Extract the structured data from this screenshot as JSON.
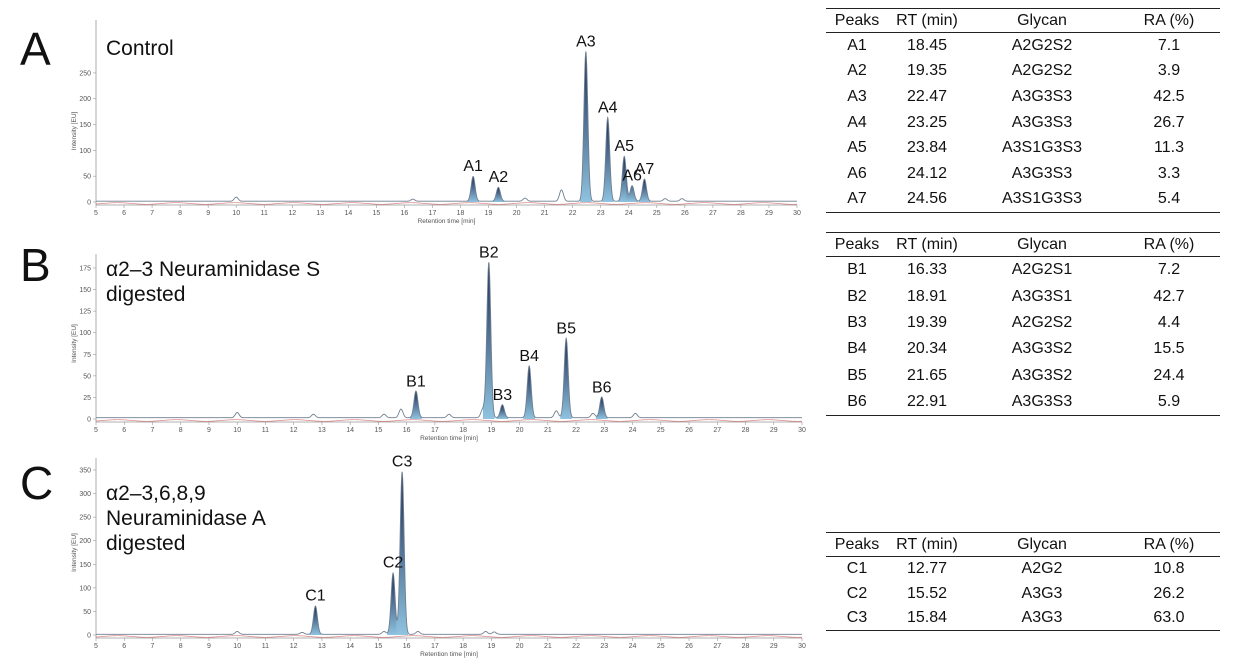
{
  "chart_data": [
    {
      "type": "line",
      "panel": "A",
      "title": "Control",
      "title_lines": [
        "Control"
      ],
      "xlabel": "Retention time [min]",
      "ylabel": "Intensity [EU]",
      "xlim": [
        5,
        30
      ],
      "ylim": [
        0,
        275
      ],
      "xticks": [
        5,
        6,
        7,
        8,
        9,
        10,
        11,
        12,
        13,
        14,
        15,
        16,
        17,
        18,
        19,
        20,
        21,
        22,
        23,
        24,
        25,
        26,
        27,
        28,
        29,
        30
      ],
      "yticks": [
        0,
        50,
        100,
        150,
        200,
        250
      ],
      "peaks": [
        {
          "label": "A1",
          "x": 18.45,
          "y": 48
        },
        {
          "label": "A2",
          "x": 19.35,
          "y": 27
        },
        {
          "label": "A3",
          "x": 22.47,
          "y": 290
        },
        {
          "label": "A4",
          "x": 23.25,
          "y": 162
        },
        {
          "label": "A5",
          "x": 23.84,
          "y": 87
        },
        {
          "label": "A6",
          "x": 24.12,
          "y": 30
        },
        {
          "label": "A7",
          "x": 24.56,
          "y": 43
        }
      ],
      "minor_peaks": [
        {
          "x": 10.0,
          "y": 8
        },
        {
          "x": 16.3,
          "y": 4
        },
        {
          "x": 20.3,
          "y": 6
        },
        {
          "x": 21.6,
          "y": 22
        },
        {
          "x": 25.3,
          "y": 5
        },
        {
          "x": 25.9,
          "y": 5
        }
      ]
    },
    {
      "type": "line",
      "panel": "B",
      "title": "α2–3 Neuraminidase S digested",
      "title_lines": [
        "α2–3 Neuraminidase S",
        "digested"
      ],
      "xlabel": "Retention time [min]",
      "ylabel": "Intensity [EU]",
      "xlim": [
        5,
        30
      ],
      "ylim": [
        0,
        175
      ],
      "xticks": [
        5,
        6,
        7,
        8,
        9,
        10,
        11,
        12,
        13,
        14,
        15,
        16,
        17,
        18,
        19,
        20,
        21,
        22,
        23,
        24,
        25,
        26,
        27,
        28,
        29,
        30
      ],
      "yticks": [
        0,
        25,
        50,
        75,
        100,
        125,
        150,
        175
      ],
      "peaks": [
        {
          "label": "B1",
          "x": 16.33,
          "y": 31
        },
        {
          "label": "B2",
          "x": 18.91,
          "y": 180
        },
        {
          "label": "B3",
          "x": 19.39,
          "y": 15
        },
        {
          "label": "B4",
          "x": 20.34,
          "y": 60
        },
        {
          "label": "B5",
          "x": 21.65,
          "y": 92
        },
        {
          "label": "B6",
          "x": 22.91,
          "y": 24
        }
      ],
      "minor_peaks": [
        {
          "x": 10.0,
          "y": 6
        },
        {
          "x": 12.7,
          "y": 4
        },
        {
          "x": 15.2,
          "y": 4
        },
        {
          "x": 15.8,
          "y": 10
        },
        {
          "x": 17.5,
          "y": 4
        },
        {
          "x": 18.7,
          "y": 10
        },
        {
          "x": 21.3,
          "y": 8
        },
        {
          "x": 22.6,
          "y": 5
        },
        {
          "x": 24.1,
          "y": 5
        }
      ]
    },
    {
      "type": "line",
      "panel": "C",
      "title": "α2–3,6,8,9 Neuraminidase A digested",
      "title_lines": [
        "α2–3,6,8,9",
        "Neuraminidase A",
        "digested"
      ],
      "xlabel": "Retention time [min]",
      "ylabel": "Intensity [EU]",
      "xlim": [
        5,
        30
      ],
      "ylim": [
        0,
        350
      ],
      "xticks": [
        5,
        6,
        7,
        8,
        9,
        10,
        11,
        12,
        13,
        14,
        15,
        16,
        17,
        18,
        19,
        20,
        21,
        22,
        23,
        24,
        25,
        26,
        27,
        28,
        29,
        30
      ],
      "yticks": [
        0,
        50,
        100,
        150,
        200,
        250,
        300,
        350
      ],
      "peaks": [
        {
          "label": "C1",
          "x": 12.77,
          "y": 60
        },
        {
          "label": "C2",
          "x": 15.52,
          "y": 130
        },
        {
          "label": "C3",
          "x": 15.84,
          "y": 345
        }
      ],
      "minor_peaks": [
        {
          "x": 10.0,
          "y": 6
        },
        {
          "x": 12.3,
          "y": 4
        },
        {
          "x": 15.2,
          "y": 6
        },
        {
          "x": 16.4,
          "y": 6
        },
        {
          "x": 18.8,
          "y": 6
        },
        {
          "x": 19.1,
          "y": 5
        }
      ]
    }
  ],
  "tables": [
    {
      "headers": [
        "Peaks",
        "RT (min)",
        "Glycan",
        "RA (%)"
      ],
      "rows": [
        [
          "A1",
          "18.45",
          "A2G2S2",
          "7.1"
        ],
        [
          "A2",
          "19.35",
          "A2G2S2",
          "3.9"
        ],
        [
          "A3",
          "22.47",
          "A3G3S3",
          "42.5"
        ],
        [
          "A4",
          "23.25",
          "A3G3S3",
          "26.7"
        ],
        [
          "A5",
          "23.84",
          "A3S1G3S3",
          "11.3"
        ],
        [
          "A6",
          "24.12",
          "A3G3S3",
          "3.3"
        ],
        [
          "A7",
          "24.56",
          "A3S1G3S3",
          "5.4"
        ]
      ]
    },
    {
      "headers": [
        "Peaks",
        "RT (min)",
        "Glycan",
        "RA (%)"
      ],
      "rows": [
        [
          "B1",
          "16.33",
          "A2G2S1",
          "7.2"
        ],
        [
          "B2",
          "18.91",
          "A3G3S1",
          "42.7"
        ],
        [
          "B3",
          "19.39",
          "A2G2S2",
          "4.4"
        ],
        [
          "B4",
          "20.34",
          "A3G3S2",
          "15.5"
        ],
        [
          "B5",
          "21.65",
          "A3G3S2",
          "24.4"
        ],
        [
          "B6",
          "22.91",
          "A3G3S3",
          "5.9"
        ]
      ]
    },
    {
      "headers": [
        "Peaks",
        "RT (min)",
        "Glycan",
        "RA (%)"
      ],
      "rows": [
        [
          "C1",
          "12.77",
          "A2G2",
          "10.8"
        ],
        [
          "C2",
          "15.52",
          "A3G3",
          "26.2"
        ],
        [
          "C3",
          "15.84",
          "A3G3",
          "63.0"
        ]
      ]
    }
  ],
  "colors": {
    "trace": "#6f7f8f",
    "baseline_red": "#d98080",
    "peak_fill_top": "#1b2a55",
    "peak_fill_bottom": "#8fc3df",
    "axis": "#999999",
    "text": "#111111"
  }
}
